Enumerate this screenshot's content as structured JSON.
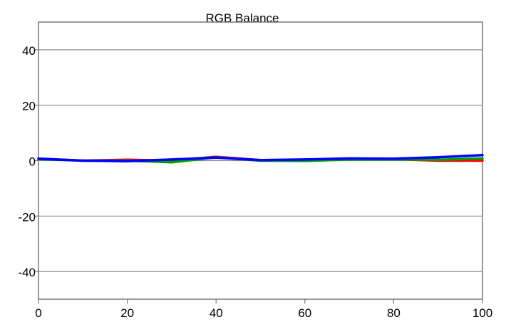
{
  "chart_data": {
    "type": "line",
    "title": "RGB Balance",
    "xlabel": "",
    "ylabel": "",
    "xlim": [
      0,
      100
    ],
    "ylim": [
      -50,
      50
    ],
    "x_ticks": [
      0,
      20,
      40,
      60,
      80,
      100
    ],
    "y_ticks": [
      40,
      20,
      0,
      -20,
      -40
    ],
    "grid": "horizontal",
    "legend": "none",
    "x": [
      0,
      10,
      20,
      30,
      40,
      50,
      60,
      70,
      80,
      90,
      100
    ],
    "series": [
      {
        "color": "#ff0000",
        "values": [
          0.7,
          0.0,
          0.3,
          0.0,
          1.4,
          0.2,
          0.0,
          0.6,
          0.6,
          0.0,
          0.0
        ]
      },
      {
        "color": "#00a000",
        "values": [
          0.6,
          0.0,
          0.0,
          -0.6,
          1.2,
          0.0,
          -0.1,
          0.4,
          0.5,
          0.3,
          0.8
        ]
      },
      {
        "color": "#0000ff",
        "values": [
          0.7,
          0.0,
          -0.2,
          0.4,
          1.1,
          0.2,
          0.4,
          0.8,
          0.7,
          1.2,
          2.0
        ]
      }
    ]
  }
}
